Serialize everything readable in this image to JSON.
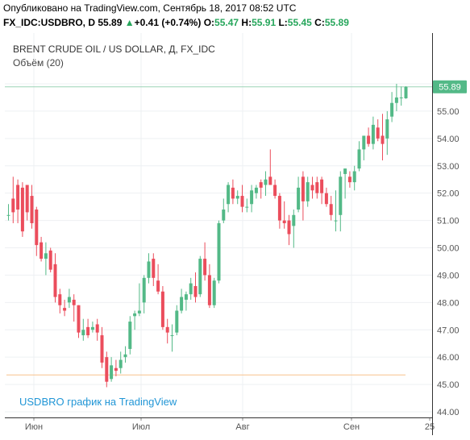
{
  "header": {
    "published": "Опубликовано на TradingView.com, Сентябрь 18, 2017 08:52 UTC",
    "symbol_line": "FX_IDC:USDBRO, D",
    "last_price": "55.89",
    "arrow": "▲",
    "change": "+0.41 (+0.74%)",
    "o_label": "O:",
    "o_value": "55.47",
    "h_label": "H:",
    "h_value": "55.91",
    "l_label": "L:",
    "l_value": "55.45",
    "c_label": "C:",
    "c_value": "55.89"
  },
  "overlay": {
    "title": "BRENT CRUDE OIL / US DOLLAR, Д, FX_IDC",
    "volume": "Объём (20)",
    "watermark": "USDBRO график на TradingView"
  },
  "chart_data": {
    "type": "candlestick",
    "price_label": "55.89",
    "y_ticks": [
      "56.00",
      "55.00",
      "54.00",
      "53.00",
      "52.00",
      "51.00",
      "50.00",
      "49.00",
      "48.00",
      "47.00",
      "46.00",
      "45.00",
      "44.00"
    ],
    "x_ticks": [
      "Июн",
      "Июл",
      "Авг",
      "Сен",
      "25"
    ],
    "ylim": [
      43.8,
      56.7
    ],
    "horizontal_line": 45.35,
    "current_price_line": 55.89,
    "colors": {
      "up": "#53b987",
      "down": "#eb4d5c",
      "price_label_bg": "#53b987",
      "hline": "#f7c28c"
    },
    "candles": [
      {
        "o": 51.2,
        "h": 51.6,
        "l": 51.0,
        "c": 51.2
      },
      {
        "o": 51.8,
        "h": 52.6,
        "l": 50.9,
        "c": 51.3
      },
      {
        "o": 52.3,
        "h": 52.5,
        "l": 50.9,
        "c": 51.4
      },
      {
        "o": 52.2,
        "h": 52.4,
        "l": 50.4,
        "c": 50.6
      },
      {
        "o": 52.3,
        "h": 52.3,
        "l": 51.0,
        "c": 51.3
      },
      {
        "o": 51.9,
        "h": 52.3,
        "l": 50.7,
        "c": 50.9
      },
      {
        "o": 51.4,
        "h": 51.5,
        "l": 49.7,
        "c": 50.1
      },
      {
        "o": 50.2,
        "h": 50.4,
        "l": 49.5,
        "c": 49.6
      },
      {
        "o": 49.6,
        "h": 50.2,
        "l": 49.0,
        "c": 49.8
      },
      {
        "o": 49.9,
        "h": 50.0,
        "l": 49.1,
        "c": 49.2
      },
      {
        "o": 49.4,
        "h": 49.8,
        "l": 48.0,
        "c": 48.2
      },
      {
        "o": 48.3,
        "h": 48.5,
        "l": 47.6,
        "c": 47.9
      },
      {
        "o": 47.8,
        "h": 48.1,
        "l": 47.5,
        "c": 47.7
      },
      {
        "o": 48.0,
        "h": 48.5,
        "l": 47.8,
        "c": 48.2
      },
      {
        "o": 48.1,
        "h": 48.3,
        "l": 47.3,
        "c": 47.9
      },
      {
        "o": 47.9,
        "h": 47.9,
        "l": 46.7,
        "c": 46.9
      },
      {
        "o": 46.8,
        "h": 47.4,
        "l": 46.6,
        "c": 47.0
      },
      {
        "o": 47.1,
        "h": 47.4,
        "l": 46.7,
        "c": 46.8
      },
      {
        "o": 47.0,
        "h": 47.3,
        "l": 46.9,
        "c": 47.1
      },
      {
        "o": 47.2,
        "h": 47.4,
        "l": 46.6,
        "c": 46.9
      },
      {
        "o": 46.8,
        "h": 47.1,
        "l": 45.6,
        "c": 45.8
      },
      {
        "o": 46.0,
        "h": 46.2,
        "l": 44.9,
        "c": 45.1
      },
      {
        "o": 45.2,
        "h": 46.0,
        "l": 45.1,
        "c": 45.7
      },
      {
        "o": 45.6,
        "h": 45.9,
        "l": 45.3,
        "c": 45.5
      },
      {
        "o": 45.6,
        "h": 46.2,
        "l": 45.4,
        "c": 45.9
      },
      {
        "o": 46.0,
        "h": 46.4,
        "l": 45.8,
        "c": 46.1
      },
      {
        "o": 46.3,
        "h": 47.5,
        "l": 46.1,
        "c": 47.3
      },
      {
        "o": 47.5,
        "h": 47.7,
        "l": 47.0,
        "c": 47.6
      },
      {
        "o": 47.6,
        "h": 48.7,
        "l": 47.5,
        "c": 47.7
      },
      {
        "o": 48.0,
        "h": 49.0,
        "l": 47.6,
        "c": 48.9
      },
      {
        "o": 48.9,
        "h": 49.8,
        "l": 48.7,
        "c": 49.5
      },
      {
        "o": 49.6,
        "h": 49.8,
        "l": 48.6,
        "c": 48.9
      },
      {
        "o": 48.8,
        "h": 49.4,
        "l": 48.3,
        "c": 48.4
      },
      {
        "o": 48.4,
        "h": 48.6,
        "l": 47.0,
        "c": 47.1
      },
      {
        "o": 47.1,
        "h": 47.4,
        "l": 46.5,
        "c": 46.9
      },
      {
        "o": 46.8,
        "h": 47.2,
        "l": 46.2,
        "c": 46.8
      },
      {
        "o": 46.9,
        "h": 47.9,
        "l": 46.8,
        "c": 47.7
      },
      {
        "o": 47.7,
        "h": 48.5,
        "l": 47.6,
        "c": 48.2
      },
      {
        "o": 48.1,
        "h": 48.4,
        "l": 47.7,
        "c": 48.3
      },
      {
        "o": 48.3,
        "h": 48.9,
        "l": 48.1,
        "c": 48.7
      },
      {
        "o": 48.6,
        "h": 49.1,
        "l": 48.0,
        "c": 48.2
      },
      {
        "o": 48.3,
        "h": 49.7,
        "l": 48.2,
        "c": 49.6
      },
      {
        "o": 49.6,
        "h": 50.2,
        "l": 48.8,
        "c": 49.0
      },
      {
        "o": 49.0,
        "h": 49.4,
        "l": 47.8,
        "c": 47.9
      },
      {
        "o": 47.9,
        "h": 48.9,
        "l": 47.8,
        "c": 48.8
      },
      {
        "o": 48.8,
        "h": 51.0,
        "l": 48.7,
        "c": 50.9
      },
      {
        "o": 51.0,
        "h": 51.8,
        "l": 50.9,
        "c": 51.4
      },
      {
        "o": 51.6,
        "h": 52.4,
        "l": 51.3,
        "c": 52.3
      },
      {
        "o": 52.2,
        "h": 52.5,
        "l": 51.6,
        "c": 51.8
      },
      {
        "o": 51.8,
        "h": 52.1,
        "l": 51.6,
        "c": 51.9
      },
      {
        "o": 51.9,
        "h": 52.3,
        "l": 51.3,
        "c": 51.5
      },
      {
        "o": 51.5,
        "h": 51.8,
        "l": 51.3,
        "c": 51.5
      },
      {
        "o": 51.6,
        "h": 52.3,
        "l": 51.3,
        "c": 52.1
      },
      {
        "o": 52.0,
        "h": 52.3,
        "l": 51.8,
        "c": 52.2
      },
      {
        "o": 52.4,
        "h": 52.5,
        "l": 51.8,
        "c": 52.2
      },
      {
        "o": 52.3,
        "h": 52.8,
        "l": 51.9,
        "c": 52.5
      },
      {
        "o": 52.6,
        "h": 53.6,
        "l": 52.4,
        "c": 52.3
      },
      {
        "o": 52.3,
        "h": 52.5,
        "l": 51.8,
        "c": 51.9
      },
      {
        "o": 51.9,
        "h": 52.0,
        "l": 50.7,
        "c": 51.0
      },
      {
        "o": 51.0,
        "h": 51.7,
        "l": 50.7,
        "c": 50.9
      },
      {
        "o": 51.0,
        "h": 51.2,
        "l": 50.1,
        "c": 50.5
      },
      {
        "o": 50.8,
        "h": 51.4,
        "l": 50.0,
        "c": 51.2
      },
      {
        "o": 51.4,
        "h": 52.6,
        "l": 51.3,
        "c": 52.2
      },
      {
        "o": 52.6,
        "h": 52.8,
        "l": 51.0,
        "c": 51.7
      },
      {
        "o": 51.7,
        "h": 52.6,
        "l": 51.5,
        "c": 52.4
      },
      {
        "o": 52.3,
        "h": 52.6,
        "l": 51.8,
        "c": 52.1
      },
      {
        "o": 52.4,
        "h": 52.6,
        "l": 51.8,
        "c": 52.0
      },
      {
        "o": 52.5,
        "h": 52.6,
        "l": 51.6,
        "c": 52.0
      },
      {
        "o": 52.0,
        "h": 52.2,
        "l": 51.5,
        "c": 51.6
      },
      {
        "o": 51.6,
        "h": 51.9,
        "l": 51.0,
        "c": 51.2
      },
      {
        "o": 51.0,
        "h": 52.1,
        "l": 50.6,
        "c": 51.0
      },
      {
        "o": 51.2,
        "h": 52.8,
        "l": 50.6,
        "c": 52.6
      },
      {
        "o": 52.7,
        "h": 52.9,
        "l": 51.8,
        "c": 52.9
      },
      {
        "o": 52.6,
        "h": 52.8,
        "l": 52.2,
        "c": 52.4
      },
      {
        "o": 52.4,
        "h": 53.0,
        "l": 52.1,
        "c": 52.8
      },
      {
        "o": 52.9,
        "h": 53.9,
        "l": 52.8,
        "c": 53.6
      },
      {
        "o": 53.6,
        "h": 54.1,
        "l": 53.2,
        "c": 54.1
      },
      {
        "o": 54.1,
        "h": 54.4,
        "l": 53.7,
        "c": 53.8
      },
      {
        "o": 53.8,
        "h": 54.8,
        "l": 53.6,
        "c": 54.5
      },
      {
        "o": 54.4,
        "h": 54.7,
        "l": 53.9,
        "c": 54.0
      },
      {
        "o": 54.1,
        "h": 54.9,
        "l": 53.2,
        "c": 53.8
      },
      {
        "o": 54.0,
        "h": 55.0,
        "l": 53.4,
        "c": 54.7
      },
      {
        "o": 54.8,
        "h": 55.7,
        "l": 54.6,
        "c": 55.3
      },
      {
        "o": 55.3,
        "h": 56.0,
        "l": 55.0,
        "c": 55.5
      },
      {
        "o": 55.5,
        "h": 55.9,
        "l": 55.2,
        "c": 55.5
      },
      {
        "o": 55.47,
        "h": 55.91,
        "l": 55.45,
        "c": 55.89
      }
    ]
  }
}
